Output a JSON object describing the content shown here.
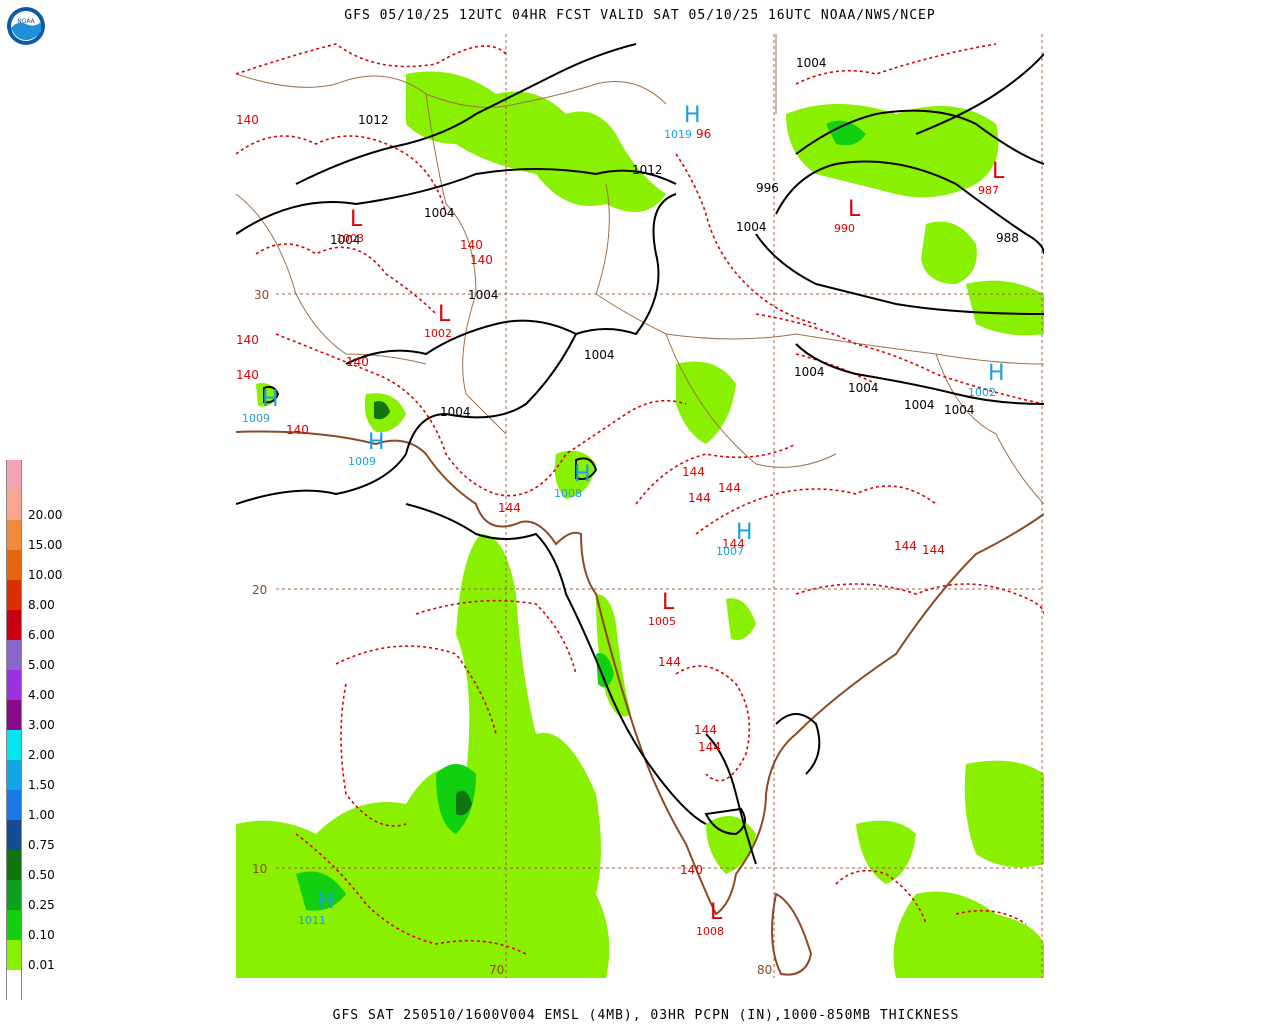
{
  "header": {
    "title": "GFS 05/10/25 12UTC 04HR FCST VALID SAT 05/10/25 16UTC NOAA/NWS/NCEP"
  },
  "footer": {
    "caption": "GFS SAT 250510/1600V004 EMSL (4MB), 03HR PCPN (IN),1000-850MB THICKNESS"
  },
  "logo": {
    "icon": "noaa-logo-icon",
    "text": "NOAA"
  },
  "legend": {
    "entries": [
      {
        "label": "",
        "color": "#f4a3b0"
      },
      {
        "label": "20.00",
        "color": "#f7a68f"
      },
      {
        "label": "15.00",
        "color": "#f08a3a"
      },
      {
        "label": "10.00",
        "color": "#e8650e"
      },
      {
        "label": "8.00",
        "color": "#d83000"
      },
      {
        "label": "6.00",
        "color": "#c80010"
      },
      {
        "label": "5.00",
        "color": "#8866cc"
      },
      {
        "label": "4.00",
        "color": "#9a32e0"
      },
      {
        "label": "3.00",
        "color": "#8a0a8c"
      },
      {
        "label": "2.00",
        "color": "#00e8ee"
      },
      {
        "label": "1.50",
        "color": "#12a6e6"
      },
      {
        "label": "1.00",
        "color": "#1a78e8"
      },
      {
        "label": "0.75",
        "color": "#174c94"
      },
      {
        "label": "0.50",
        "color": "#107410"
      },
      {
        "label": "0.25",
        "color": "#10a020"
      },
      {
        "label": "0.10",
        "color": "#10d010"
      },
      {
        "label": "0.01",
        "color": "#88f000"
      },
      {
        "label": "",
        "color": "#ffffff"
      }
    ]
  },
  "map": {
    "lat_labels": [
      "30",
      "20",
      "10"
    ],
    "lon_labels": [
      "70",
      "80"
    ],
    "isobars": [
      "1012",
      "1004",
      "1004",
      "1004",
      "1004",
      "1012",
      "1004",
      "1004",
      "996",
      "988",
      "1004",
      "1004",
      "1004",
      "1004",
      "1004"
    ],
    "thickness": [
      "140",
      "140",
      "140",
      "140",
      "140",
      "140",
      "140",
      "144",
      "144",
      "144",
      "144",
      "144",
      "144",
      "144",
      "144",
      "144",
      "144",
      "140",
      "96"
    ],
    "highs": [
      {
        "symbol": "H",
        "value": "1019"
      },
      {
        "symbol": "H",
        "value": "1009"
      },
      {
        "symbol": "H",
        "value": "1009"
      },
      {
        "symbol": "H",
        "value": "1008"
      },
      {
        "symbol": "H",
        "value": "1007"
      },
      {
        "symbol": "H",
        "value": "1002"
      },
      {
        "symbol": "H",
        "value": "1011"
      }
    ],
    "lows": [
      {
        "symbol": "L",
        "value": "1003"
      },
      {
        "symbol": "L",
        "value": "1002"
      },
      {
        "symbol": "L",
        "value": "990"
      },
      {
        "symbol": "L",
        "value": "987"
      },
      {
        "symbol": "L",
        "value": "1005"
      },
      {
        "symbol": "L",
        "value": "1008"
      }
    ],
    "colors": {
      "isobar": "#000000",
      "thickness": "#dd0000",
      "high": "#1aa0e0",
      "low": "#dd0000",
      "coast": "#8b4a26",
      "border": "#a0704a",
      "grid": "#a06040",
      "precip_light": "#88f000",
      "precip_010": "#10d010",
      "precip_025": "#10a020",
      "precip_050": "#107410"
    }
  }
}
